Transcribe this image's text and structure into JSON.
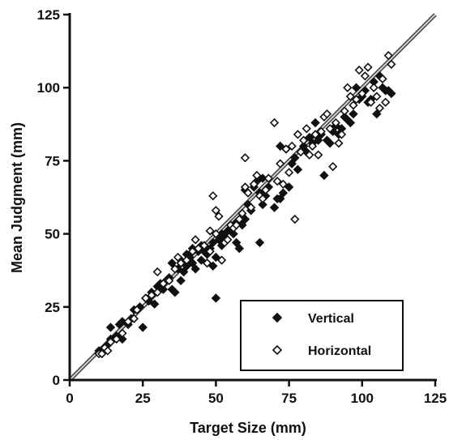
{
  "chart_data": {
    "type": "scatter",
    "title": "",
    "xlabel": "Target Size (mm)",
    "ylabel": "Mean Judgment (mm)",
    "xlim": [
      0,
      125
    ],
    "ylim": [
      0,
      125
    ],
    "xticks": [
      0,
      25,
      50,
      75,
      100,
      125
    ],
    "yticks": [
      0,
      25,
      50,
      75,
      100,
      125
    ],
    "grid": false,
    "legend_position": "bottom-right",
    "reference_line": {
      "from": [
        0,
        0
      ],
      "to": [
        125,
        125
      ],
      "color": "#9a9a9a"
    },
    "series": [
      {
        "name": "Vertical",
        "marker": "filled-diamond",
        "color": "#111111",
        "points": [
          [
            10,
            10
          ],
          [
            11,
            9
          ],
          [
            12,
            11
          ],
          [
            13,
            12
          ],
          [
            14,
            14
          ],
          [
            14,
            18
          ],
          [
            16,
            15
          ],
          [
            17,
            19
          ],
          [
            18,
            20
          ],
          [
            18,
            14
          ],
          [
            20,
            19
          ],
          [
            21,
            21
          ],
          [
            22,
            24
          ],
          [
            24,
            25
          ],
          [
            25,
            18
          ],
          [
            26,
            28
          ],
          [
            27,
            27
          ],
          [
            28,
            30
          ],
          [
            29,
            26
          ],
          [
            30,
            32
          ],
          [
            31,
            33
          ],
          [
            32,
            31
          ],
          [
            33,
            34
          ],
          [
            34,
            35
          ],
          [
            35,
            31
          ],
          [
            35,
            40
          ],
          [
            36,
            30
          ],
          [
            37,
            38
          ],
          [
            38,
            41
          ],
          [
            38,
            34
          ],
          [
            39,
            37
          ],
          [
            40,
            39
          ],
          [
            40,
            43
          ],
          [
            41,
            42
          ],
          [
            42,
            40
          ],
          [
            42,
            45
          ],
          [
            43,
            38
          ],
          [
            44,
            44
          ],
          [
            45,
            41
          ],
          [
            45,
            46
          ],
          [
            46,
            44
          ],
          [
            47,
            43
          ],
          [
            47,
            40
          ],
          [
            48,
            45
          ],
          [
            49,
            47
          ],
          [
            49,
            39
          ],
          [
            50,
            28
          ],
          [
            50,
            42
          ],
          [
            51,
            48
          ],
          [
            52,
            46
          ],
          [
            52,
            50
          ],
          [
            53,
            49
          ],
          [
            54,
            51
          ],
          [
            55,
            52
          ],
          [
            56,
            50
          ],
          [
            57,
            54
          ],
          [
            57,
            47
          ],
          [
            58,
            45
          ],
          [
            59,
            53
          ],
          [
            59,
            56
          ],
          [
            60,
            55
          ],
          [
            60,
            65
          ],
          [
            61,
            60
          ],
          [
            62,
            58
          ],
          [
            63,
            66
          ],
          [
            64,
            68
          ],
          [
            65,
            64
          ],
          [
            65,
            47
          ],
          [
            66,
            69
          ],
          [
            66,
            60
          ],
          [
            67,
            63
          ],
          [
            68,
            66
          ],
          [
            70,
            59
          ],
          [
            71,
            62
          ],
          [
            72,
            62
          ],
          [
            72,
            80
          ],
          [
            73,
            64
          ],
          [
            74,
            79
          ],
          [
            75,
            66
          ],
          [
            76,
            74
          ],
          [
            77,
            76
          ],
          [
            78,
            72
          ],
          [
            80,
            80
          ],
          [
            81,
            78
          ],
          [
            82,
            83
          ],
          [
            83,
            81
          ],
          [
            84,
            88
          ],
          [
            85,
            82
          ],
          [
            86,
            84
          ],
          [
            87,
            70
          ],
          [
            88,
            82
          ],
          [
            89,
            81
          ],
          [
            90,
            85
          ],
          [
            91,
            87
          ],
          [
            92,
            84
          ],
          [
            93,
            86
          ],
          [
            94,
            90
          ],
          [
            95,
            89
          ],
          [
            96,
            88
          ],
          [
            97,
            91
          ],
          [
            98,
            100
          ],
          [
            99,
            96
          ],
          [
            100,
            97
          ],
          [
            101,
            99
          ],
          [
            102,
            95
          ],
          [
            103,
            96
          ],
          [
            104,
            102
          ],
          [
            105,
            91
          ],
          [
            106,
            104
          ],
          [
            107,
            100
          ],
          [
            108,
            99
          ],
          [
            109,
            99
          ],
          [
            110,
            98
          ]
        ]
      },
      {
        "name": "Horizontal",
        "marker": "open-diamond",
        "color": "#111111",
        "points": [
          [
            10,
            9
          ],
          [
            11,
            9
          ],
          [
            12,
            11
          ],
          [
            13,
            10
          ],
          [
            14,
            13
          ],
          [
            16,
            14
          ],
          [
            18,
            16
          ],
          [
            20,
            20
          ],
          [
            22,
            21
          ],
          [
            23,
            24
          ],
          [
            26,
            28
          ],
          [
            28,
            29
          ],
          [
            30,
            30
          ],
          [
            30,
            37
          ],
          [
            32,
            33
          ],
          [
            34,
            34
          ],
          [
            36,
            38
          ],
          [
            37,
            42
          ],
          [
            38,
            40
          ],
          [
            40,
            41
          ],
          [
            42,
            44
          ],
          [
            43,
            48
          ],
          [
            44,
            45
          ],
          [
            46,
            46
          ],
          [
            47,
            40
          ],
          [
            48,
            44
          ],
          [
            48,
            51
          ],
          [
            49,
            63
          ],
          [
            50,
            50
          ],
          [
            50,
            58
          ],
          [
            51,
            56
          ],
          [
            52,
            41
          ],
          [
            53,
            47
          ],
          [
            54,
            48
          ],
          [
            55,
            53
          ],
          [
            56,
            52
          ],
          [
            57,
            53
          ],
          [
            58,
            55
          ],
          [
            59,
            57
          ],
          [
            60,
            66
          ],
          [
            60,
            76
          ],
          [
            61,
            64
          ],
          [
            62,
            59
          ],
          [
            63,
            67
          ],
          [
            64,
            70
          ],
          [
            65,
            63
          ],
          [
            66,
            62
          ],
          [
            67,
            65
          ],
          [
            68,
            69
          ],
          [
            70,
            88
          ],
          [
            71,
            68
          ],
          [
            72,
            74
          ],
          [
            73,
            67
          ],
          [
            74,
            79
          ],
          [
            75,
            71
          ],
          [
            76,
            80
          ],
          [
            77,
            55
          ],
          [
            78,
            84
          ],
          [
            79,
            78
          ],
          [
            80,
            82
          ],
          [
            81,
            86
          ],
          [
            82,
            77
          ],
          [
            83,
            80
          ],
          [
            84,
            84
          ],
          [
            85,
            77
          ],
          [
            86,
            85
          ],
          [
            87,
            90
          ],
          [
            88,
            91
          ],
          [
            89,
            86
          ],
          [
            90,
            73
          ],
          [
            91,
            88
          ],
          [
            92,
            81
          ],
          [
            93,
            84
          ],
          [
            94,
            92
          ],
          [
            95,
            100
          ],
          [
            96,
            97
          ],
          [
            97,
            94
          ],
          [
            98,
            96
          ],
          [
            99,
            106
          ],
          [
            100,
            98
          ],
          [
            101,
            104
          ],
          [
            102,
            107
          ],
          [
            103,
            95
          ],
          [
            104,
            100
          ],
          [
            105,
            97
          ],
          [
            106,
            93
          ],
          [
            107,
            103
          ],
          [
            108,
            95
          ],
          [
            109,
            111
          ],
          [
            110,
            108
          ]
        ]
      }
    ]
  }
}
